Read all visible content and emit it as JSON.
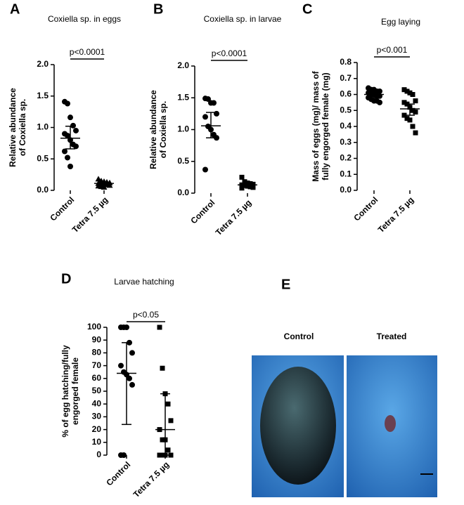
{
  "chart_data": [
    {
      "type": "dot",
      "panel": "A",
      "title": "Coxiella sp. in eggs",
      "y_label": [
        "Relative abundance",
        "of Coxiella sp."
      ],
      "annotation": "p<0.0001",
      "categories": [
        "Control",
        "Tetra 7.5 µg"
      ],
      "ylim": [
        0,
        2
      ],
      "yticks": [
        {
          "value": 0,
          "label": "0.0"
        },
        0.5,
        {
          "value": 1,
          "label": "1.0"
        },
        1.5,
        {
          "value": 2,
          "label": "2.0"
        }
      ],
      "groups": [
        {
          "marker": "circle",
          "color": "#000000",
          "points": [
            1.41,
            1.38,
            1.16,
            1.03,
            0.95,
            0.9,
            0.87,
            0.8,
            0.73,
            0.7,
            0.62,
            0.52,
            0.38
          ],
          "center": 0.83,
          "lower": 0.66,
          "upper": 1.02
        },
        {
          "marker": "triangle",
          "color": "#000000",
          "points": [
            0.18,
            0.15,
            0.14,
            0.13,
            0.12,
            0.11,
            0.1,
            0.1,
            0.09,
            0.08,
            0.07,
            0.06,
            0.05
          ],
          "center": 0.11,
          "lower": 0.09,
          "upper": 0.13
        }
      ]
    },
    {
      "type": "dot",
      "panel": "B",
      "title": "Coxiella sp. in larvae",
      "y_label": [
        "Relative abundance",
        "of Coxiella sp."
      ],
      "annotation": "p<0.0001",
      "categories": [
        "Control",
        "Tetra 7.5 µg"
      ],
      "ylim": [
        0,
        2
      ],
      "yticks": [
        {
          "value": 0,
          "label": "0.0"
        },
        0.5,
        {
          "value": 1,
          "label": "1.0"
        },
        1.5,
        {
          "value": 2,
          "label": "2.0"
        }
      ],
      "groups": [
        {
          "marker": "circle",
          "color": "#000000",
          "points": [
            1.49,
            1.48,
            1.42,
            1.42,
            1.25,
            1.2,
            1.05,
            1.0,
            0.92,
            0.87,
            0.37
          ],
          "center": 1.06,
          "lower": 0.87,
          "upper": 1.27
        },
        {
          "marker": "square",
          "color": "#000000",
          "points": [
            0.25,
            0.18,
            0.16,
            0.15,
            0.14,
            0.13,
            0.12,
            0.11,
            0.1,
            0.09,
            0.08
          ],
          "center": 0.13,
          "lower": 0.11,
          "upper": 0.15
        }
      ]
    },
    {
      "type": "dot",
      "panel": "C",
      "title": "Egg laying",
      "y_label": [
        "Mass of eggs (mg)/ mass of",
        "fully engorged female (mg)"
      ],
      "annotation": "p<0.001",
      "categories": [
        "Control",
        "Tetra 7.5 µg"
      ],
      "ylim": [
        0,
        0.8
      ],
      "yticks": [
        {
          "value": 0,
          "label": "0.0"
        },
        0.1,
        0.2,
        0.3,
        0.4,
        0.5,
        0.6,
        0.7,
        0.8
      ],
      "groups": [
        {
          "marker": "circle",
          "color": "#000000",
          "points": [
            0.64,
            0.63,
            0.63,
            0.62,
            0.62,
            0.61,
            0.6,
            0.6,
            0.59,
            0.59,
            0.58,
            0.57,
            0.56,
            0.56,
            0.55
          ],
          "center": 0.6,
          "lower": 0.58,
          "upper": 0.61
        },
        {
          "marker": "square",
          "color": "#000000",
          "points": [
            0.63,
            0.62,
            0.61,
            0.6,
            0.56,
            0.55,
            0.54,
            0.52,
            0.5,
            0.49,
            0.47,
            0.45,
            0.44,
            0.4,
            0.36
          ],
          "center": 0.51,
          "lower": 0.47,
          "upper": 0.54
        }
      ]
    },
    {
      "type": "dot",
      "panel": "D",
      "title": "Larvae hatching",
      "y_label": [
        "% of egg hatching/fully",
        "engorged female"
      ],
      "annotation": "p<0.05",
      "categories": [
        "Control",
        "Tetra 7.5 µg"
      ],
      "ylim": [
        0,
        100
      ],
      "yticks": [
        0,
        10,
        20,
        30,
        40,
        50,
        60,
        70,
        80,
        90,
        100
      ],
      "groups": [
        {
          "marker": "circle",
          "color": "#000000",
          "points": [
            100,
            100,
            100,
            88,
            80,
            70,
            65,
            63,
            60,
            55,
            0,
            0
          ],
          "center": 64,
          "lower": 24,
          "upper": 88
        },
        {
          "marker": "square",
          "color": "#000000",
          "points": [
            100,
            68,
            48,
            40,
            27,
            20,
            12,
            12,
            4,
            0,
            0,
            0,
            0
          ],
          "center": 20,
          "lower": 0,
          "upper": 48
        }
      ]
    }
  ],
  "panel_e": {
    "letter": "E",
    "labels": [
      "Control",
      "Treated"
    ]
  }
}
